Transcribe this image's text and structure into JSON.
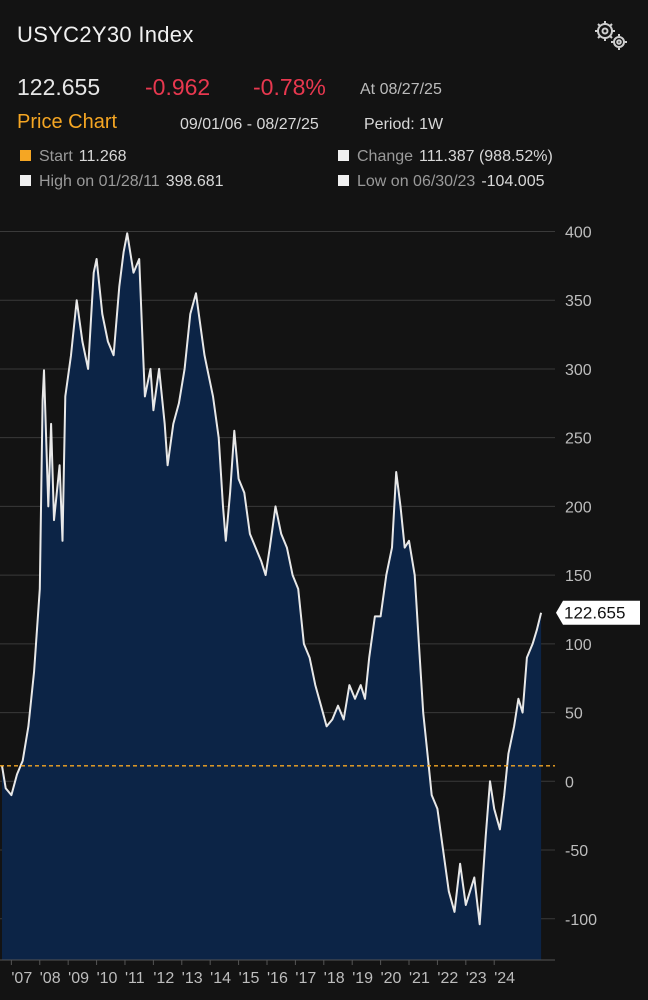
{
  "header": {
    "title": "USYC2Y30 Index",
    "last": 122.655,
    "change": -0.962,
    "change_pct": "-0.78%",
    "as_of": "At 08/27/25",
    "section": "Price Chart",
    "range": "09/01/06 - 08/27/25",
    "period": "Period: 1W",
    "start": {
      "label": "Start",
      "value": 11.268
    },
    "total_change": {
      "label": "Change",
      "value": "111.387 (988.52%)"
    },
    "high": {
      "label": "High on 01/28/11",
      "value": 398.681
    },
    "low": {
      "label": "Low on 06/30/23",
      "value": -104.005
    }
  },
  "chart_data": {
    "type": "area",
    "x": [
      2006.67,
      2006.8,
      2007.0,
      2007.2,
      2007.4,
      2007.6,
      2007.8,
      2008.0,
      2008.1,
      2008.15,
      2008.3,
      2008.4,
      2008.5,
      2008.7,
      2008.8,
      2008.9,
      2009.1,
      2009.3,
      2009.5,
      2009.7,
      2009.9,
      2010.0,
      2010.2,
      2010.4,
      2010.6,
      2010.8,
      2010.95,
      2011.08,
      2011.3,
      2011.5,
      2011.6,
      2011.7,
      2011.9,
      2012.0,
      2012.2,
      2012.4,
      2012.5,
      2012.7,
      2012.9,
      2013.1,
      2013.3,
      2013.5,
      2013.6,
      2013.8,
      2013.9,
      2014.1,
      2014.3,
      2014.45,
      2014.55,
      2014.7,
      2014.85,
      2015.0,
      2015.2,
      2015.4,
      2015.6,
      2015.8,
      2015.95,
      2016.1,
      2016.3,
      2016.5,
      2016.7,
      2016.9,
      2017.1,
      2017.3,
      2017.5,
      2017.7,
      2017.9,
      2018.1,
      2018.3,
      2018.5,
      2018.7,
      2018.9,
      2019.1,
      2019.3,
      2019.45,
      2019.6,
      2019.8,
      2020.0,
      2020.2,
      2020.4,
      2020.55,
      2020.7,
      2020.85,
      2021.0,
      2021.2,
      2021.35,
      2021.5,
      2021.7,
      2021.8,
      2022.0,
      2022.2,
      2022.4,
      2022.6,
      2022.8,
      2023.0,
      2023.3,
      2023.49,
      2023.7,
      2023.85,
      2024.0,
      2024.2,
      2024.35,
      2024.5,
      2024.7,
      2024.85,
      2025.0,
      2025.15,
      2025.35,
      2025.5,
      2025.65
    ],
    "series": [
      {
        "name": "USYC2Y30 Index",
        "color": "#e8e8e8",
        "fill": "#0c2446",
        "values": [
          11.268,
          -5,
          -10,
          5,
          15,
          40,
          80,
          140,
          277,
          299,
          200,
          260,
          190,
          230,
          175,
          280,
          310,
          350,
          320,
          300,
          370,
          380,
          340,
          320,
          310,
          360,
          385,
          398.681,
          370,
          380,
          330,
          280,
          300,
          270,
          300,
          260,
          230,
          260,
          275,
          300,
          340,
          355,
          340,
          310,
          300,
          280,
          250,
          200,
          175,
          210,
          255,
          220,
          210,
          180,
          170,
          160,
          150,
          170,
          200,
          180,
          170,
          150,
          140,
          100,
          90,
          70,
          55,
          40,
          45,
          55,
          45,
          70,
          60,
          70,
          60,
          90,
          120,
          120,
          150,
          170,
          225,
          200,
          170,
          175,
          150,
          100,
          50,
          10,
          -10,
          -20,
          -50,
          -80,
          -95,
          -60,
          -90,
          -70,
          -104.005,
          -40,
          0,
          -20,
          -35,
          -10,
          20,
          40,
          60,
          50,
          90,
          100,
          110,
          122.655
        ]
      }
    ],
    "xlim": [
      2006.6,
      2026.14
    ],
    "xticks": [
      {
        "value": 2007,
        "label": "'07"
      },
      {
        "value": 2008,
        "label": "'08"
      },
      {
        "value": 2009,
        "label": "'09"
      },
      {
        "value": 2010,
        "label": "'10"
      },
      {
        "value": 2011,
        "label": "'11"
      },
      {
        "value": 2012,
        "label": "'12"
      },
      {
        "value": 2013,
        "label": "'13"
      },
      {
        "value": 2014,
        "label": "'14"
      },
      {
        "value": 2015,
        "label": "'15"
      },
      {
        "value": 2016,
        "label": "'16"
      },
      {
        "value": 2017,
        "label": "'17"
      },
      {
        "value": 2018,
        "label": "'18"
      },
      {
        "value": 2019,
        "label": "'19"
      },
      {
        "value": 2020,
        "label": "'20"
      },
      {
        "value": 2021,
        "label": "'21"
      },
      {
        "value": 2022,
        "label": "'22"
      },
      {
        "value": 2023,
        "label": "'23"
      },
      {
        "value": 2024,
        "label": "'24"
      }
    ],
    "ylim": [
      -130,
      412
    ],
    "yticks": [
      400,
      350,
      300,
      250,
      200,
      150,
      100,
      50,
      0,
      -50,
      -100
    ],
    "grid": true
  }
}
